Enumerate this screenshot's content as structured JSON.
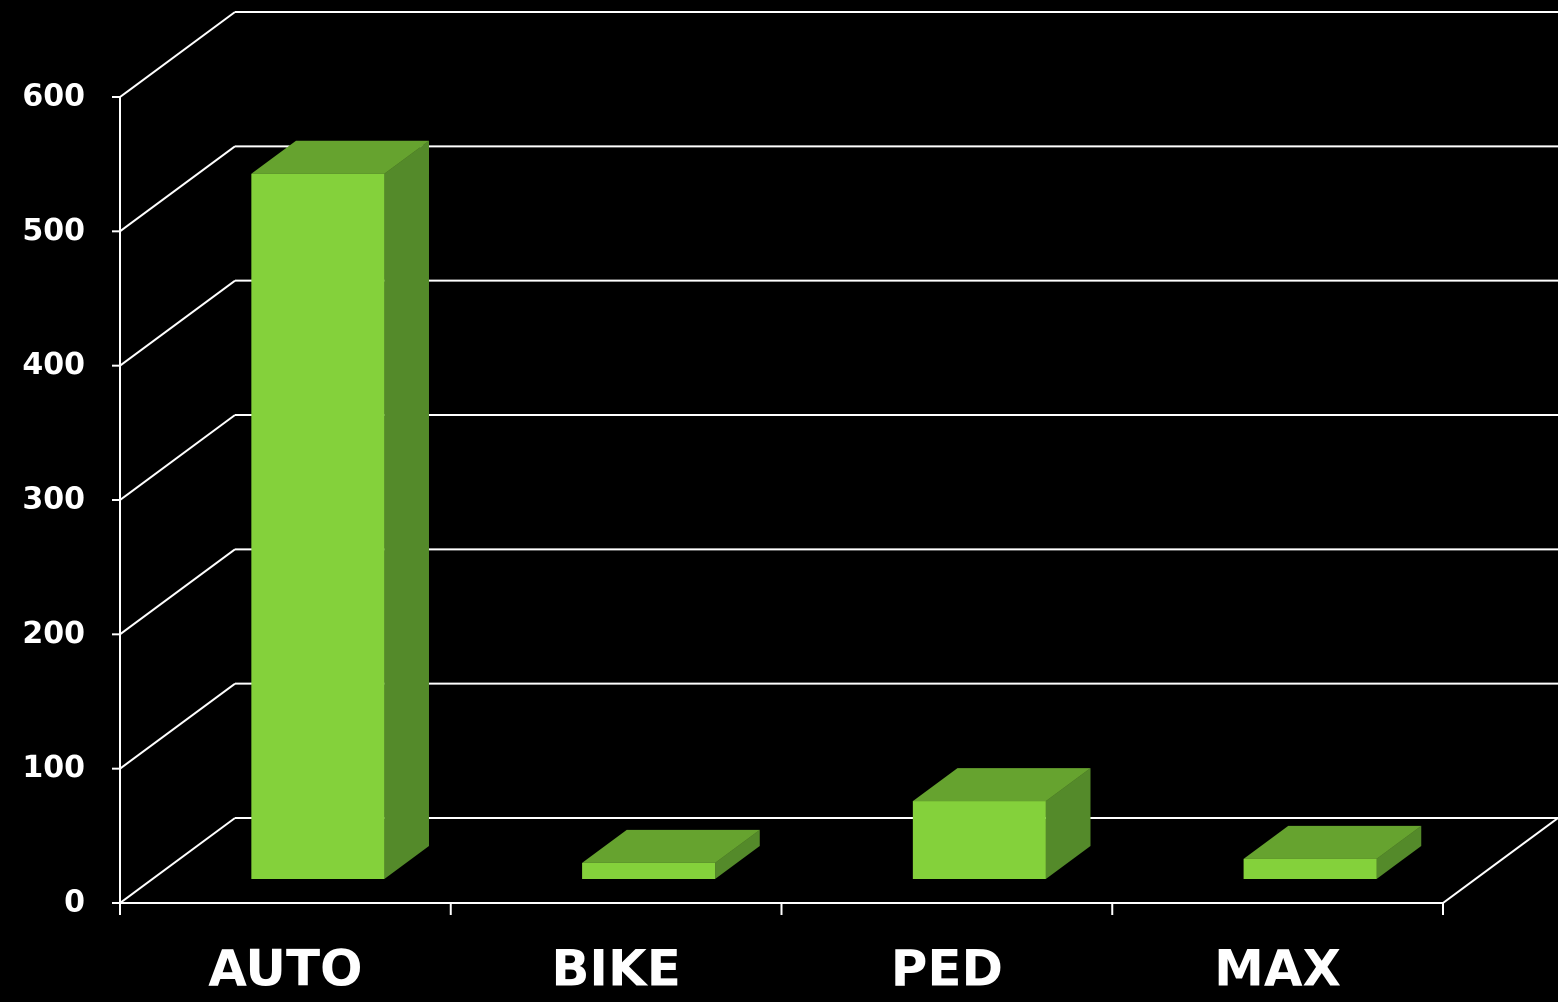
{
  "chart_data": {
    "type": "bar3d",
    "categories": [
      "AUTO",
      "BIKE",
      "PED",
      "MAX"
    ],
    "values": [
      525,
      12,
      58,
      15
    ],
    "color": "#84d13b",
    "ylim": [
      0,
      600
    ],
    "yticks": [
      0,
      100,
      200,
      300,
      400,
      500,
      600
    ],
    "grid": true
  }
}
